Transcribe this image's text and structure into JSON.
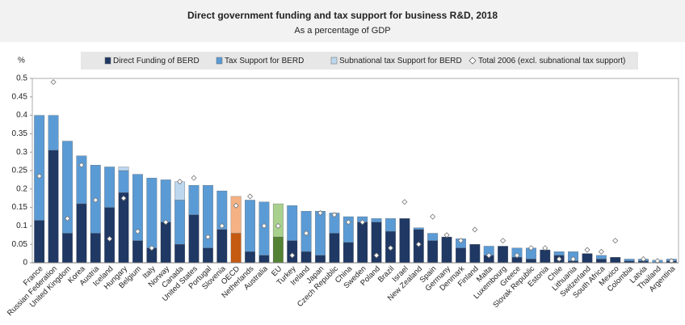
{
  "chart_data": {
    "type": "bar",
    "title": "Direct government funding and tax support for business R&D, 2018",
    "subtitle": "As a percentage of GDP",
    "y_label": "%",
    "categories": [
      "France",
      "Russian Federation",
      "United Kingdom",
      "Korea",
      "Austria",
      "Iceland",
      "Hungary",
      "Belgium",
      "Italy",
      "Norway",
      "Canada",
      "United States",
      "Portugal",
      "Slovenia",
      "OECD",
      "Netherlands",
      "Australia",
      "EU",
      "Turkey",
      "Ireland",
      "Japan",
      "Czech Republic",
      "China",
      "Sweden",
      "Poland",
      "Brazil",
      "Israel",
      "New Zealand",
      "Spain",
      "Germany",
      "Denmark",
      "Finland",
      "Malta",
      "Luxembourg",
      "Greece",
      "Slovak Republic",
      "Estonia",
      "Chile",
      "Lithuania",
      "Switzerland",
      "South Africa",
      "Mexico",
      "Colombia",
      "Latvia",
      "Thailand",
      "Argentina"
    ],
    "series": [
      {
        "name": "Direct Funding of BERD",
        "color": "#1f3864",
        "values": [
          0.115,
          0.305,
          0.08,
          0.16,
          0.08,
          0.15,
          0.19,
          0.06,
          0.04,
          0.11,
          0.05,
          0.13,
          0.04,
          0.09,
          0.08,
          0.03,
          0.02,
          0.07,
          0.06,
          0.03,
          0.02,
          0.08,
          0.055,
          0.11,
          0.11,
          0.085,
          0.12,
          0.09,
          0.06,
          0.07,
          0.04,
          0.05,
          0.02,
          0.045,
          0.015,
          0.01,
          0.035,
          0.02,
          0.005,
          0.025,
          0.01,
          0.015,
          0.005,
          0.005,
          0,
          0.005
        ]
      },
      {
        "name": "Tax Support for BERD",
        "color": "#5b9bd5",
        "values": [
          0.285,
          0.095,
          0.25,
          0.13,
          0.185,
          0.11,
          0.06,
          0.18,
          0.19,
          0.115,
          0.12,
          0.08,
          0.17,
          0.105,
          0.1,
          0.14,
          0.145,
          0.09,
          0.095,
          0.11,
          0.12,
          0.055,
          0.07,
          0.015,
          0.01,
          0.035,
          0,
          0.005,
          0.02,
          0,
          0.025,
          0,
          0.025,
          0,
          0.025,
          0.03,
          0,
          0.01,
          0.025,
          0,
          0.01,
          0,
          0.005,
          0.005,
          0.007,
          0.005
        ]
      },
      {
        "name": "Subnational tax Support for BERD",
        "color": "#bdd7ee",
        "values": [
          0,
          0,
          0,
          0,
          0,
          0,
          0.01,
          0,
          0,
          0,
          0.05,
          0,
          0,
          0,
          0,
          0,
          0,
          0,
          0,
          0,
          0,
          0,
          0,
          0,
          0,
          0,
          0,
          0,
          0,
          0,
          0,
          0,
          0,
          0,
          0,
          0,
          0,
          0,
          0,
          0,
          0,
          0,
          0,
          0,
          0,
          0
        ]
      }
    ],
    "markers": {
      "name": "Total 2006 (excl. subnational tax support)",
      "color": "#ffffff",
      "values": [
        0.235,
        0.49,
        0.12,
        0.265,
        0.17,
        0.065,
        0.175,
        0.085,
        0.04,
        0.11,
        0.22,
        0.23,
        0.07,
        0.1,
        0.155,
        0.18,
        0.1,
        0.1,
        0.02,
        0.08,
        0.135,
        0.13,
        0.11,
        0.11,
        0.02,
        0.04,
        0.165,
        0.05,
        0.125,
        0.075,
        0.06,
        0.09,
        0.02,
        0.06,
        0.02,
        0.04,
        0.04,
        0.01,
        0.01,
        0.035,
        0.03,
        0.06,
        null,
        0.01,
        0.005,
        0.005
      ]
    },
    "highlight_colors": {
      "OECD": [
        "#c55a11",
        "#f4b183",
        "#fbe5d6"
      ],
      "EU": [
        "#548235",
        "#a9d18e",
        "#e2f0d9"
      ]
    },
    "ylim": [
      0,
      0.5
    ],
    "yticks": [
      0,
      0.05,
      0.1,
      0.15,
      0.2,
      0.25,
      0.3,
      0.35,
      0.4,
      0.45,
      0.5
    ],
    "grid": false
  }
}
